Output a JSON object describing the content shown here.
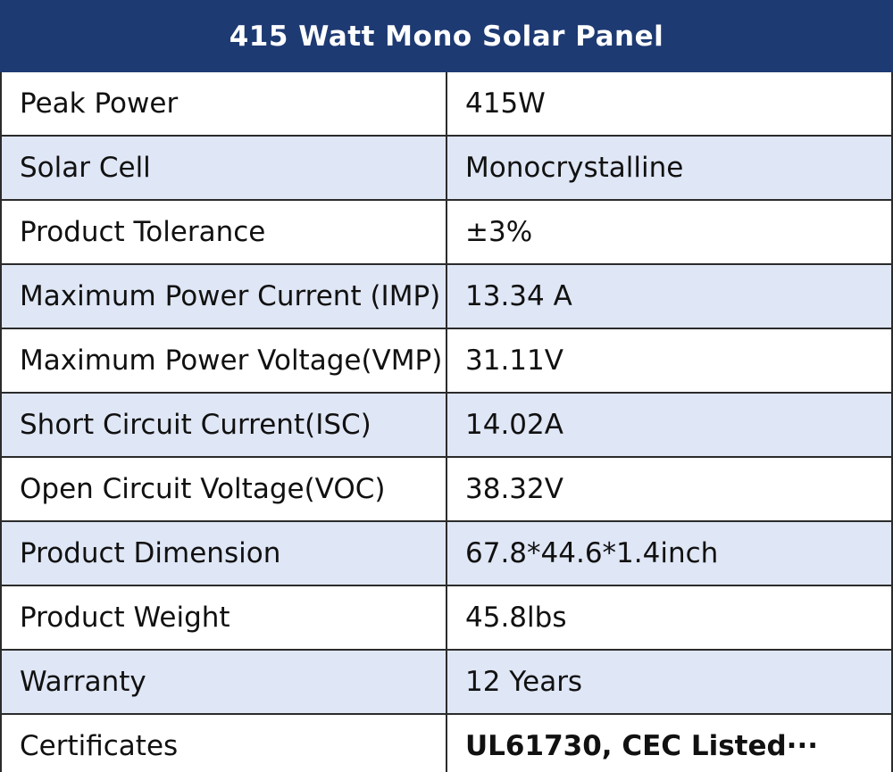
{
  "table": {
    "title": "415 Watt Mono Solar Panel",
    "rows": [
      [
        "Peak Power",
        "415W"
      ],
      [
        "Solar Cell",
        "Monocrystalline"
      ],
      [
        "Product Tolerance",
        "±3%"
      ],
      [
        "Maximum Power Current (IMP)",
        "13.34 A"
      ],
      [
        "Maximum Power Voltage(VMP)",
        "31.11V"
      ],
      [
        "Short Circuit Current(ISC)",
        "14.02A"
      ],
      [
        "Open Circuit Voltage(VOC)",
        "38.32V"
      ],
      [
        "Product Dimension",
        "67.8*44.6*1.4inch"
      ],
      [
        "Product Weight",
        "45.8lbs"
      ],
      [
        "Warranty",
        "12 Years"
      ],
      [
        "Certificates",
        "UL61730, CEC Listed···"
      ]
    ]
  }
}
